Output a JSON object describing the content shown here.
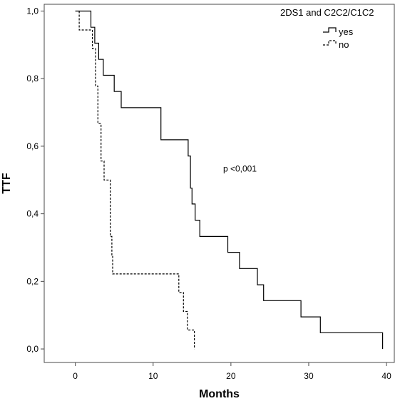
{
  "chart_data": {
    "type": "line",
    "title": "",
    "xlabel": "Months",
    "ylabel": "TTF",
    "xlim": [
      -4,
      41
    ],
    "ylim": [
      -0.04,
      1.02
    ],
    "x_ticks": [
      0,
      10,
      20,
      30,
      40
    ],
    "x_tick_labels": [
      "0",
      "10",
      "20",
      "30",
      "40"
    ],
    "y_ticks": [
      0.0,
      0.2,
      0.4,
      0.6,
      0.8,
      1.0
    ],
    "y_tick_labels": [
      "0,0",
      "0,2",
      "0,4",
      "0,6",
      "0,8",
      "1,0"
    ],
    "grid": false,
    "step": true,
    "legend": {
      "title": "2DS1 and C2C2/C1C2",
      "position": "top-right"
    },
    "annotations": [
      {
        "text": "p <0,001",
        "x": 19,
        "y": 0.525
      }
    ],
    "series": [
      {
        "name": "yes",
        "style": "solid",
        "color": "#000000",
        "points": [
          [
            0,
            1.0
          ],
          [
            2.0,
            1.0
          ],
          [
            2.0,
            0.952
          ],
          [
            2.5,
            0.952
          ],
          [
            2.5,
            0.905
          ],
          [
            3.0,
            0.905
          ],
          [
            3.0,
            0.857
          ],
          [
            3.6,
            0.857
          ],
          [
            3.6,
            0.81
          ],
          [
            5.0,
            0.81
          ],
          [
            5.0,
            0.762
          ],
          [
            5.9,
            0.762
          ],
          [
            5.9,
            0.714
          ],
          [
            11.0,
            0.714
          ],
          [
            11.0,
            0.619
          ],
          [
            14.5,
            0.619
          ],
          [
            14.5,
            0.571
          ],
          [
            14.8,
            0.571
          ],
          [
            14.8,
            0.476
          ],
          [
            15.0,
            0.476
          ],
          [
            15.0,
            0.429
          ],
          [
            15.4,
            0.429
          ],
          [
            15.4,
            0.381
          ],
          [
            16.0,
            0.381
          ],
          [
            16.0,
            0.333
          ],
          [
            19.6,
            0.333
          ],
          [
            19.6,
            0.286
          ],
          [
            21.1,
            0.286
          ],
          [
            21.1,
            0.238
          ],
          [
            23.4,
            0.238
          ],
          [
            23.4,
            0.19
          ],
          [
            24.2,
            0.19
          ],
          [
            24.2,
            0.143
          ],
          [
            29.0,
            0.143
          ],
          [
            29.0,
            0.095
          ],
          [
            31.5,
            0.095
          ],
          [
            31.5,
            0.048
          ],
          [
            39.5,
            0.048
          ],
          [
            39.5,
            0.0
          ]
        ]
      },
      {
        "name": "no",
        "style": "dashed",
        "color": "#000000",
        "points": [
          [
            0.5,
            1.0
          ],
          [
            0.5,
            0.944
          ],
          [
            2.2,
            0.944
          ],
          [
            2.2,
            0.889
          ],
          [
            2.6,
            0.889
          ],
          [
            2.6,
            0.778
          ],
          [
            2.9,
            0.778
          ],
          [
            2.9,
            0.667
          ],
          [
            3.3,
            0.667
          ],
          [
            3.3,
            0.556
          ],
          [
            3.7,
            0.556
          ],
          [
            3.7,
            0.5
          ],
          [
            4.5,
            0.5
          ],
          [
            4.5,
            0.333
          ],
          [
            4.7,
            0.333
          ],
          [
            4.7,
            0.278
          ],
          [
            4.8,
            0.278
          ],
          [
            4.8,
            0.222
          ],
          [
            13.3,
            0.222
          ],
          [
            13.3,
            0.167
          ],
          [
            13.9,
            0.167
          ],
          [
            13.9,
            0.111
          ],
          [
            14.4,
            0.111
          ],
          [
            14.4,
            0.056
          ],
          [
            15.3,
            0.056
          ],
          [
            15.3,
            0.0
          ]
        ]
      }
    ]
  }
}
